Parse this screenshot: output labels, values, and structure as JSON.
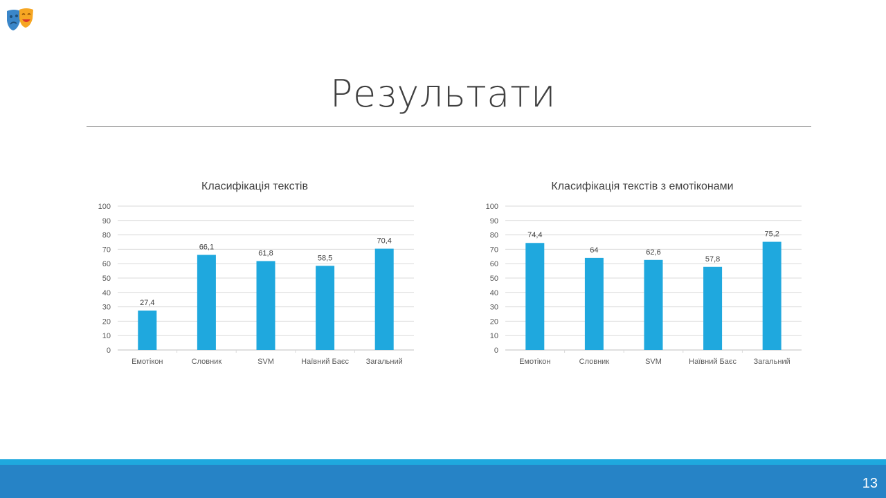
{
  "slide": {
    "title": "Результати",
    "page_number": "13",
    "logo_icon": "theater-masks-icon",
    "accent_color": "#1fa8de",
    "footer_color": "#2683c6"
  },
  "chart_data": [
    {
      "type": "bar",
      "title": "Класифікація текстів",
      "categories": [
        "Емотікон",
        "Словник",
        "SVM",
        "Наївний Баєс",
        "Загальний"
      ],
      "values": [
        27.4,
        66.1,
        61.8,
        58.5,
        70.4
      ],
      "value_labels": [
        "27,4",
        "66,1",
        "61,8",
        "58,5",
        "70,4"
      ],
      "ylim": [
        0,
        100
      ],
      "yticks": [
        0,
        10,
        20,
        30,
        40,
        50,
        60,
        70,
        80,
        90,
        100
      ],
      "grid": true,
      "bar_color": "#1fa8de"
    },
    {
      "type": "bar",
      "title": "Класифікація текстів з емотіконами",
      "categories": [
        "Емотікон",
        "Словник",
        "SVM",
        "Наївний Баєс",
        "Загальний"
      ],
      "values": [
        74.4,
        64,
        62.6,
        57.8,
        75.2
      ],
      "value_labels": [
        "74,4",
        "64",
        "62,6",
        "57,8",
        "75,2"
      ],
      "ylim": [
        0,
        100
      ],
      "yticks": [
        0,
        10,
        20,
        30,
        40,
        50,
        60,
        70,
        80,
        90,
        100
      ],
      "grid": true,
      "bar_color": "#1fa8de"
    }
  ]
}
